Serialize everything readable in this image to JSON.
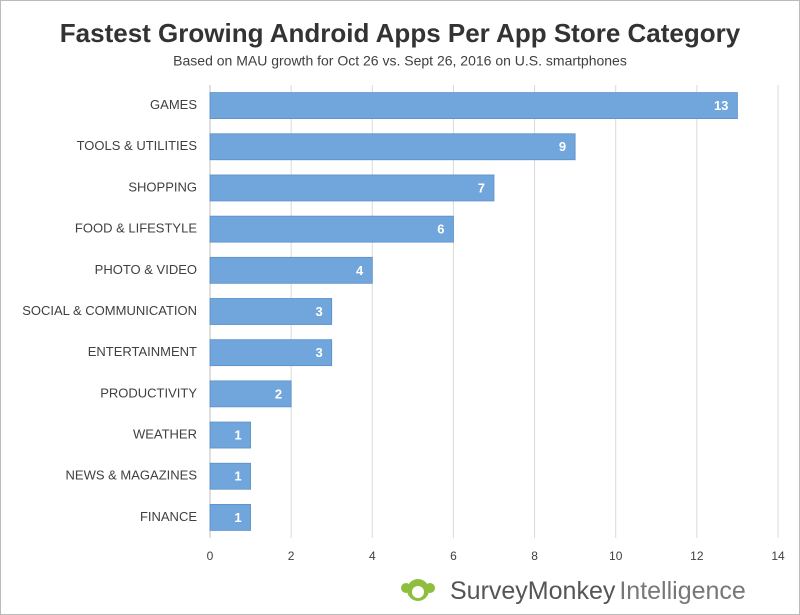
{
  "chart_data": {
    "type": "hbar",
    "title": "Fastest Growing Android Apps Per App Store Category",
    "subtitle": "Based on MAU growth for Oct 26 vs. Sept 26, 2016 on U.S. smartphones",
    "categories": [
      "GAMES",
      "TOOLS & UTILITIES",
      "SHOPPING",
      "FOOD & LIFESTYLE",
      "PHOTO & VIDEO",
      "SOCIAL & COMMUNICATION",
      "ENTERTAINMENT",
      "PRODUCTIVITY",
      "WEATHER",
      "NEWS & MAGAZINES",
      "FINANCE"
    ],
    "values": [
      13,
      9,
      7,
      6,
      4,
      3,
      3,
      2,
      1,
      1,
      1
    ],
    "color": "#71a6dc",
    "xlim": [
      0,
      14
    ],
    "xticks": [
      0,
      2,
      4,
      6,
      8,
      10,
      12,
      14
    ],
    "grid": true
  },
  "footer": {
    "brand": "SurveyMonkey",
    "product": "Intelligence"
  }
}
